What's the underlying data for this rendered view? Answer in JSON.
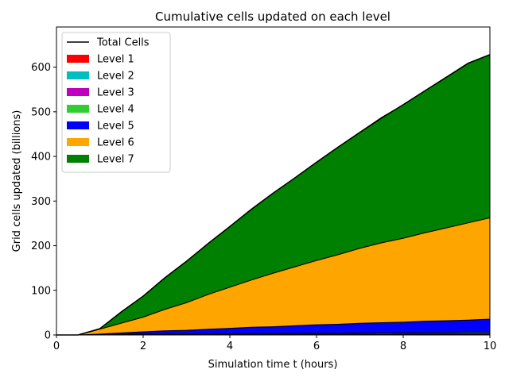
{
  "chart_data": {
    "type": "area",
    "title": "Cumulative cells updated on each level",
    "xlabel": "Simulation time t (hours)",
    "ylabel": "Grid cells updated (billions)",
    "xlim": [
      0,
      10
    ],
    "ylim": [
      0,
      690
    ],
    "xticks": [
      0,
      2,
      4,
      6,
      8,
      10
    ],
    "yticks": [
      0,
      100,
      200,
      300,
      400,
      500,
      600
    ],
    "grid": false,
    "legend_placement": "top-left",
    "x": [
      0,
      0.5,
      1,
      1.5,
      2,
      2.5,
      3,
      3.5,
      4,
      4.5,
      5,
      5.5,
      6,
      6.5,
      7,
      7.5,
      8,
      8.5,
      9,
      9.5,
      10
    ],
    "total_line": {
      "name": "Total Cells",
      "color": "#000000",
      "values": [
        0,
        0,
        14,
        52,
        87,
        128,
        165,
        205,
        243,
        282,
        318,
        352,
        387,
        421,
        454,
        486,
        516,
        547,
        578,
        609,
        628
      ]
    },
    "series": [
      {
        "name": "Level 1",
        "color": "#ff0000",
        "values": [
          0,
          0,
          0.1,
          0.1,
          0.1,
          0.1,
          0.1,
          0.1,
          0.1,
          0.1,
          0.1,
          0.1,
          0.1,
          0.1,
          0.1,
          0.1,
          0.1,
          0.1,
          0.1,
          0.1,
          0.1
        ]
      },
      {
        "name": "Level 2",
        "color": "#00bfbf",
        "values": [
          0,
          0,
          0.2,
          0.3,
          0.3,
          0.3,
          0.3,
          0.3,
          0.3,
          0.3,
          0.3,
          0.3,
          0.3,
          0.3,
          0.3,
          0.3,
          0.3,
          0.3,
          0.3,
          0.3,
          0.3
        ]
      },
      {
        "name": "Level 3",
        "color": "#bf00bf",
        "values": [
          0,
          0,
          0.3,
          0.5,
          0.6,
          0.7,
          0.8,
          0.9,
          1.0,
          1.1,
          1.2,
          1.3,
          1.4,
          1.5,
          1.6,
          1.7,
          1.8,
          1.9,
          2.0,
          2.1,
          2.2
        ]
      },
      {
        "name": "Level 4",
        "color": "#32cd32",
        "values": [
          0,
          0,
          0.5,
          0.8,
          1.0,
          1.2,
          1.3,
          1.5,
          1.6,
          1.8,
          1.9,
          2.0,
          2.1,
          2.2,
          2.3,
          2.4,
          2.5,
          2.6,
          2.7,
          2.8,
          2.9
        ]
      },
      {
        "name": "Level 5",
        "color": "#0000ff",
        "values": [
          0,
          0,
          1,
          3,
          5,
          7,
          8,
          10,
          12,
          14,
          15,
          17,
          19,
          20,
          22,
          23,
          24,
          26,
          27,
          28,
          30
        ]
      },
      {
        "name": "Level 6",
        "color": "#ffa500",
        "values": [
          0,
          0,
          11,
          22,
          33,
          48,
          62,
          78,
          92,
          106,
          120,
          132,
          144,
          156,
          168,
          179,
          188,
          198,
          208,
          218,
          227
        ]
      },
      {
        "name": "Level 7",
        "color": "#008000",
        "values": [
          0,
          0,
          1,
          25,
          47,
          71,
          93,
          114,
          136,
          158,
          179,
          199,
          220,
          241,
          260,
          281,
          299,
          318,
          337,
          357,
          365
        ]
      }
    ]
  }
}
